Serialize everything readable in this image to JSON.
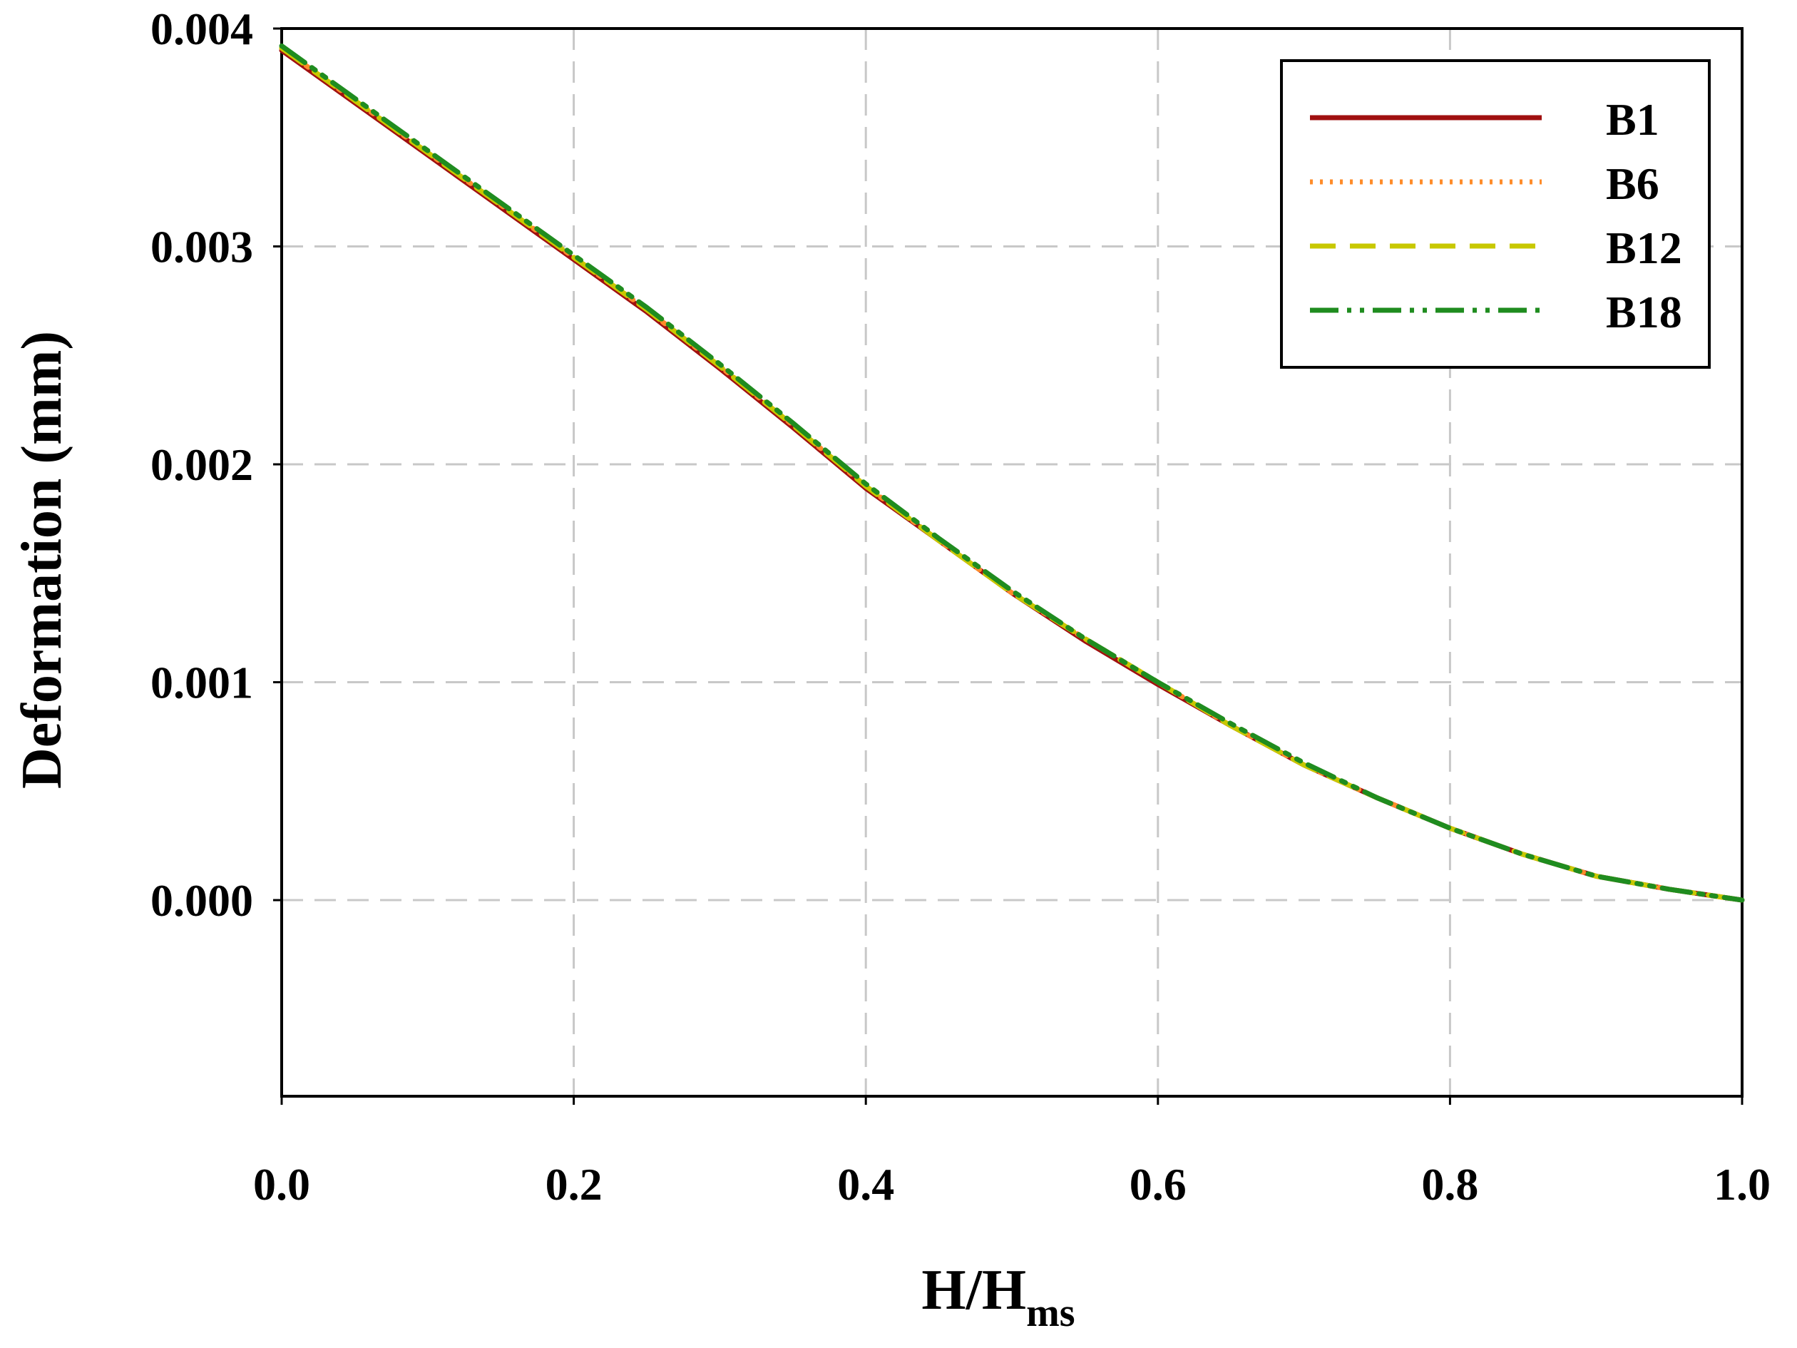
{
  "chart_data": {
    "type": "line",
    "title": "",
    "xlabel": "H/H",
    "xlabel_subscript": "ms",
    "ylabel": "Deformation (mm)",
    "xlim": [
      0.0,
      1.0
    ],
    "ylim": [
      -0.0009,
      0.004
    ],
    "x_ticks": [
      "0.0",
      "0.2",
      "0.4",
      "0.6",
      "0.8",
      "1.0"
    ],
    "y_ticks": [
      "0.000",
      "0.001",
      "0.002",
      "0.003",
      "0.004"
    ],
    "grid": true,
    "legend_position": "top-right",
    "x": [
      0.0,
      0.05,
      0.1,
      0.15,
      0.2,
      0.25,
      0.3,
      0.35,
      0.4,
      0.45,
      0.5,
      0.55,
      0.6,
      0.65,
      0.7,
      0.75,
      0.8,
      0.85,
      0.9,
      0.95,
      1.0
    ],
    "series": [
      {
        "name": "B1",
        "color": "#a01010",
        "style": "solid",
        "values": [
          0.0039,
          0.00366,
          0.00342,
          0.00318,
          0.00294,
          0.0027,
          0.00244,
          0.00217,
          0.00189,
          0.00165,
          0.00141,
          0.00119,
          0.00099,
          0.0008,
          0.00062,
          0.00047,
          0.00033,
          0.00021,
          0.00011,
          5e-05,
          0.0
        ]
      },
      {
        "name": "B6",
        "color": "#ff8c2a",
        "style": "dotted",
        "values": [
          0.00391,
          0.00367,
          0.00343,
          0.00319,
          0.00295,
          0.00271,
          0.00245,
          0.00218,
          0.0019,
          0.00165,
          0.00141,
          0.0012,
          0.001,
          0.0008,
          0.00062,
          0.00047,
          0.00033,
          0.00021,
          0.00011,
          5e-05,
          0.0
        ]
      },
      {
        "name": "B12",
        "color": "#c8c800",
        "style": "dashed",
        "values": [
          0.00391,
          0.00367,
          0.00343,
          0.00319,
          0.00295,
          0.00271,
          0.00245,
          0.00218,
          0.0019,
          0.00165,
          0.00141,
          0.0012,
          0.001,
          0.0008,
          0.00062,
          0.00047,
          0.00033,
          0.00021,
          0.00011,
          5e-05,
          0.0
        ]
      },
      {
        "name": "B18",
        "color": "#1f8c1f",
        "style": "dash-dot-dot",
        "values": [
          0.00392,
          0.00368,
          0.00344,
          0.0032,
          0.00296,
          0.00272,
          0.00246,
          0.00219,
          0.00191,
          0.00166,
          0.00142,
          0.0012,
          0.001,
          0.00081,
          0.00063,
          0.00047,
          0.00033,
          0.00021,
          0.00011,
          5e-05,
          0.0
        ]
      }
    ]
  }
}
